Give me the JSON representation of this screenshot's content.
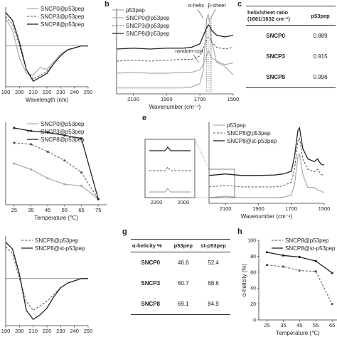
{
  "panel_letters": {
    "b": "b",
    "c": "c",
    "e": "e",
    "g": "g",
    "h": "h"
  },
  "colors": {
    "light": "#aaaaaa",
    "mid": "#555555",
    "dark": "#222222"
  },
  "chart_data": [
    {
      "id": "a",
      "type": "line",
      "xlabel": "Wavelength (nm)",
      "ylabel": "",
      "xlim": [
        190,
        250
      ],
      "xticks": [
        "190",
        "200",
        "210",
        "220",
        "230",
        "240",
        "250"
      ],
      "legend": "top-right",
      "series": [
        {
          "name": "SNCP0@p53pep",
          "style": "light",
          "x": [
            190,
            195,
            200,
            205,
            210,
            215,
            220,
            225,
            230,
            235,
            240,
            245,
            250
          ],
          "y": [
            14,
            8,
            -6,
            -14,
            -15,
            -11,
            -12,
            -8,
            -4,
            -2,
            -1,
            0,
            0
          ]
        },
        {
          "name": "SNCP3@p53pep",
          "style": "dashed",
          "x": [
            190,
            195,
            200,
            205,
            210,
            215,
            220,
            225,
            230,
            235,
            240,
            245,
            250
          ],
          "y": [
            15,
            11,
            0,
            -12,
            -17,
            -15,
            -13,
            -9,
            -5,
            -2,
            -1,
            0,
            0
          ]
        },
        {
          "name": "SNCP8@p53pep",
          "style": "solid",
          "x": [
            190,
            195,
            200,
            205,
            210,
            215,
            220,
            225,
            230,
            235,
            240,
            245,
            250
          ],
          "y": [
            17,
            13,
            2,
            -12,
            -18,
            -16,
            -14,
            -9,
            -5,
            -2,
            -1,
            0,
            0
          ]
        }
      ]
    },
    {
      "id": "b",
      "type": "line",
      "xlabel": "Wavenumber (cm⁻¹)",
      "ylabel": "",
      "xlim": [
        2200,
        1500
      ],
      "xticks": [
        "2100",
        "1900",
        "1700",
        "1500"
      ],
      "legend": "top-left",
      "annotations": [
        "α-helix",
        "β-sheet",
        "random-coil"
      ],
      "series": [
        {
          "name": "p53pep",
          "style": "light",
          "x": [
            2200,
            2100,
            2000,
            1900,
            1800,
            1750,
            1700,
            1680,
            1660,
            1650,
            1640,
            1630,
            1600,
            1550,
            1500
          ],
          "y": [
            0.5,
            0.5,
            0.5,
            0.5,
            0.5,
            0.6,
            1.0,
            2.5,
            8.5,
            9.0,
            8.0,
            6.0,
            3.5,
            3.0,
            2.0
          ]
        },
        {
          "name": "SNCP0@p53pep",
          "style": "light",
          "x": [
            2200,
            2100,
            2000,
            1900,
            1800,
            1750,
            1700,
            1680,
            1660,
            1650,
            1640,
            1630,
            1600,
            1550,
            1500
          ],
          "y": [
            2.2,
            2.3,
            2.2,
            2.2,
            2.3,
            2.3,
            2.6,
            3.2,
            4.2,
            4.8,
            4.5,
            4.0,
            3.6,
            3.2,
            3.4
          ]
        },
        {
          "name": "SNCP3@p53pep",
          "style": "dashed",
          "x": [
            2200,
            2100,
            2000,
            1900,
            1800,
            1750,
            1700,
            1680,
            1660,
            1650,
            1640,
            1630,
            1600,
            1550,
            1500
          ],
          "y": [
            3.6,
            3.7,
            3.6,
            3.7,
            3.8,
            3.8,
            4.2,
            5.0,
            6.0,
            6.4,
            6.2,
            5.8,
            5.2,
            5.0,
            5.2
          ]
        },
        {
          "name": "SNCP8@p53pep",
          "style": "solid",
          "x": [
            2200,
            2100,
            2000,
            1900,
            1800,
            1750,
            1700,
            1680,
            1660,
            1650,
            1640,
            1630,
            1600,
            1550,
            1500
          ],
          "y": [
            5.0,
            5.1,
            5.0,
            5.1,
            5.1,
            5.2,
            5.6,
            6.5,
            7.4,
            7.8,
            7.6,
            7.2,
            6.6,
            6.4,
            6.6
          ]
        }
      ]
    },
    {
      "id": "c",
      "type": "table",
      "columns": [
        "helix/sheet ratio (1661/1632 cm⁻¹)",
        "p53pep"
      ],
      "rows": [
        [
          "SNCP0",
          "0.889"
        ],
        [
          "SNCP3",
          "0.915"
        ],
        [
          "SNCP8",
          "0.996"
        ]
      ]
    },
    {
      "id": "d",
      "type": "line",
      "xlabel": "Temperature (℃)",
      "ylabel": "",
      "xlim": [
        20,
        80
      ],
      "xticks": [
        "25",
        "35",
        "45",
        "55",
        "65",
        "75"
      ],
      "legend": "top-right",
      "series": [
        {
          "name": "SNCP0@p53pep",
          "style": "light-marker",
          "x": [
            25,
            35,
            45,
            55,
            65,
            75
          ],
          "y": [
            24,
            20,
            14,
            10,
            9,
            0
          ]
        },
        {
          "name": "SNCP3@p53pep",
          "style": "dashed",
          "x": [
            25,
            35,
            45,
            55,
            65,
            75
          ],
          "y": [
            38,
            37,
            32,
            26,
            18,
            0
          ]
        },
        {
          "name": "SNCP8@p53pep",
          "style": "solid",
          "x": [
            25,
            35,
            45,
            55,
            65,
            75
          ],
          "y": [
            48,
            46,
            45,
            43,
            41,
            0
          ]
        }
      ]
    },
    {
      "id": "e",
      "type": "line",
      "xlabel": "Wavenumber (cm⁻¹)",
      "ylabel": "",
      "xlim": [
        2200,
        1500
      ],
      "xticks": [
        "2100",
        "1900",
        "1700",
        "1500"
      ],
      "inset_xticks": [
        "2200",
        "2000"
      ],
      "legend": "top-left",
      "series": [
        {
          "name": "p53pep",
          "style": "light",
          "x": [
            2200,
            2100,
            2000,
            1900,
            1800,
            1750,
            1700,
            1680,
            1660,
            1650,
            1640,
            1630,
            1600,
            1560,
            1540,
            1520,
            1500
          ],
          "y": [
            0.5,
            0.8,
            0.5,
            0.5,
            0.5,
            0.6,
            1.0,
            3.0,
            8.5,
            9.0,
            7.0,
            5.0,
            2.5,
            2.5,
            2.0,
            1.8,
            1.5
          ]
        },
        {
          "name": "SNCP8@p53pep",
          "style": "dashed",
          "x": [
            2200,
            2100,
            2000,
            1900,
            1800,
            1750,
            1700,
            1680,
            1660,
            1650,
            1640,
            1630,
            1600,
            1560,
            1540,
            1520,
            1500
          ],
          "y": [
            2.6,
            2.9,
            2.6,
            2.6,
            2.6,
            2.8,
            3.5,
            6.0,
            11.5,
            12.0,
            10.0,
            8.0,
            6.0,
            5.5,
            6.0,
            5.0,
            4.8
          ]
        },
        {
          "name": "SNCP8@st-p53pep",
          "style": "solid",
          "x": [
            2200,
            2100,
            2000,
            1900,
            1800,
            1750,
            1700,
            1680,
            1660,
            1650,
            1640,
            1630,
            1600,
            1560,
            1540,
            1520,
            1500
          ],
          "y": [
            4.8,
            5.1,
            4.8,
            4.8,
            4.9,
            5.1,
            5.6,
            8.5,
            13.5,
            14.0,
            12.0,
            10.0,
            8.0,
            7.5,
            8.0,
            7.0,
            6.8
          ]
        }
      ]
    },
    {
      "id": "f",
      "type": "line",
      "xlabel": "",
      "ylabel": "",
      "xlim": [
        190,
        250
      ],
      "xticks": [
        "190",
        "200",
        "210",
        "220",
        "230",
        "240",
        "250"
      ],
      "legend": "top-right",
      "series": [
        {
          "name": "SNCP8@p53pep",
          "style": "dashed",
          "x": [
            190,
            195,
            200,
            205,
            210,
            215,
            220,
            225,
            230,
            235,
            240,
            245,
            250
          ],
          "y": [
            14,
            11,
            0,
            -10,
            -14,
            -12,
            -10,
            -7,
            -4,
            -2,
            -1,
            0,
            0
          ]
        },
        {
          "name": "SNCP8@st-p53pep",
          "style": "solid",
          "x": [
            190,
            195,
            200,
            205,
            210,
            215,
            220,
            225,
            230,
            235,
            240,
            245,
            250
          ],
          "y": [
            16,
            13,
            2,
            -14,
            -18,
            -16,
            -13,
            -8,
            -4,
            -2,
            -1,
            0,
            0
          ]
        }
      ]
    },
    {
      "id": "g",
      "type": "table",
      "columns": [
        "α-helicity %",
        "p53pep",
        "st-p53pep"
      ],
      "rows": [
        [
          "SNCP0",
          "46.6",
          "52.4"
        ],
        [
          "SNCP3",
          "60.7",
          "68.6"
        ],
        [
          "SNCP8",
          "69.1",
          "84.9"
        ]
      ]
    },
    {
      "id": "h",
      "type": "line",
      "xlabel": "Temperature (℃)",
      "ylabel": "α-helicity (%)",
      "xlim": [
        20,
        68
      ],
      "ylim": [
        0,
        100
      ],
      "xticks": [
        "25",
        "35",
        "45",
        "55",
        "65"
      ],
      "yticks": [
        "0",
        "20",
        "40",
        "60",
        "80",
        "100"
      ],
      "legend": "top-right",
      "series": [
        {
          "name": "SNCP8@p53pep",
          "style": "dashed",
          "x": [
            25,
            35,
            45,
            55,
            65
          ],
          "y": [
            69,
            67,
            62,
            61,
            20
          ]
        },
        {
          "name": "SNCP8@st-p53pep",
          "style": "solid",
          "x": [
            25,
            35,
            45,
            55,
            65
          ],
          "y": [
            85,
            81,
            79,
            74,
            59
          ]
        }
      ]
    }
  ]
}
